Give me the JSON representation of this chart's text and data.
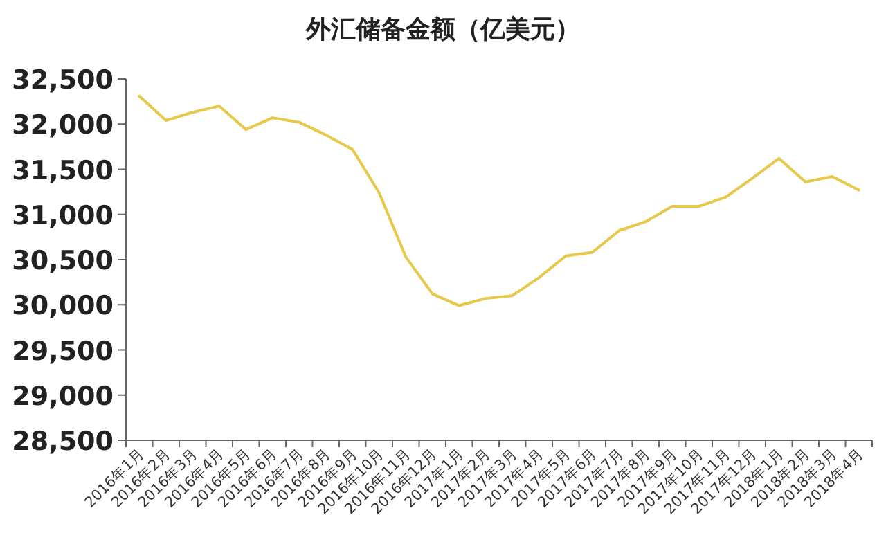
{
  "chart_data": {
    "type": "line",
    "title": "外汇储备金额（亿美元）",
    "categories": [
      "2016年1月",
      "2016年2月",
      "2016年3月",
      "2016年4月",
      "2016年5月",
      "2016年6月",
      "2016年7月",
      "2016年8月",
      "2016年9月",
      "2016年10月",
      "2016年11月",
      "2016年12月",
      "2017年1月",
      "2017年2月",
      "2017年3月",
      "2017年4月",
      "2017年5月",
      "2017年6月",
      "2017年7月",
      "2017年8月",
      "2017年9月",
      "2017年10月",
      "2017年11月",
      "2017年12月",
      "2018年1月",
      "2018年2月",
      "2018年3月",
      "2018年4月"
    ],
    "values": [
      32310,
      32040,
      32130,
      32200,
      31940,
      32070,
      32020,
      31880,
      31720,
      31240,
      30530,
      30120,
      29990,
      30070,
      30100,
      30300,
      30540,
      30580,
      30820,
      30920,
      31090,
      31090,
      31190,
      31400,
      31620,
      31360,
      31420,
      31270
    ],
    "color": "#e6c84a",
    "ylim": [
      28500,
      32500
    ],
    "yticks": [
      {
        "value": 28500,
        "label": "28,500"
      },
      {
        "value": 29000,
        "label": "29,000"
      },
      {
        "value": 29500,
        "label": "29,500"
      },
      {
        "value": 30000,
        "label": "30,000"
      },
      {
        "value": 30500,
        "label": "30,500"
      },
      {
        "value": 31000,
        "label": "31,000"
      },
      {
        "value": 31500,
        "label": "31,500"
      },
      {
        "value": 32000,
        "label": "32,000"
      },
      {
        "value": 32500,
        "label": "32,500"
      }
    ],
    "grid": false,
    "legend": false,
    "marker": "none",
    "line_style": "solid"
  }
}
